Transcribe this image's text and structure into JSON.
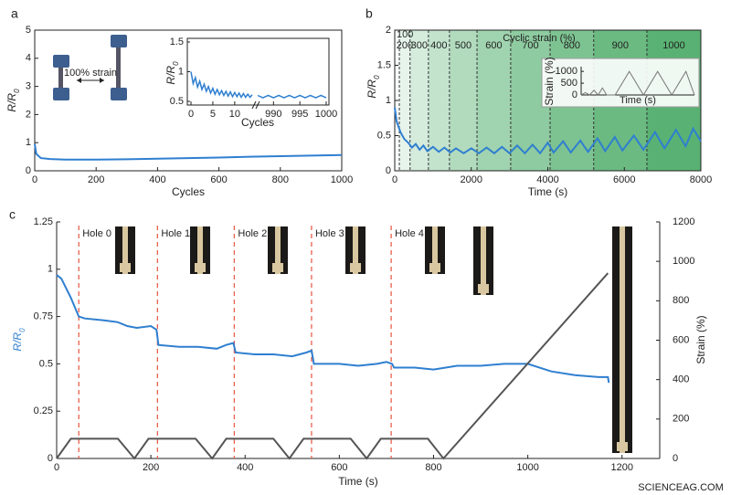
{
  "chart_data": [
    {
      "type": "line",
      "panel": "a",
      "xlabel": "Cycles",
      "ylabel": [
        "R/R",
        "0"
      ],
      "annotation": "100% strain",
      "xlim": [
        0,
        1000
      ],
      "xticks": [
        0,
        200,
        400,
        600,
        800,
        1000
      ],
      "ylim": [
        0,
        5
      ],
      "yticks": [
        0,
        1,
        2,
        3,
        4,
        5
      ],
      "series": [
        {
          "color": "#2f7fd0",
          "x": [
            0,
            5,
            20,
            50,
            100,
            200,
            300,
            400,
            500,
            600,
            700,
            800,
            900,
            1000
          ],
          "values": [
            0.95,
            0.6,
            0.45,
            0.42,
            0.4,
            0.4,
            0.41,
            0.43,
            0.45,
            0.47,
            0.5,
            0.52,
            0.54,
            0.56
          ]
        }
      ]
    },
    {
      "type": "line",
      "xlabel": "Cycles",
      "ylabel": [
        "R/R",
        "0"
      ],
      "ylim": [
        0.5,
        1.5
      ],
      "yticks": [
        0.5,
        1,
        1.5
      ],
      "segments": [
        {
          "xlim": [
            0,
            14
          ],
          "xticks": [
            0,
            5,
            10
          ]
        },
        {
          "xlim": [
            987,
            1000
          ],
          "xticks": [
            990,
            995,
            1000
          ]
        }
      ],
      "series": [
        {
          "color": "#2f7fd0",
          "x": [
            0,
            0.5,
            1,
            1.5,
            2,
            2.5,
            3,
            3.5,
            4,
            4.5,
            5,
            5.5,
            6,
            6.5,
            7,
            7.5,
            8,
            8.5,
            9,
            9.5,
            10,
            10.5,
            11,
            11.5,
            12,
            12.5,
            13,
            13.5,
            14
          ],
          "values": [
            1.0,
            0.8,
            0.9,
            0.74,
            0.84,
            0.7,
            0.79,
            0.67,
            0.75,
            0.64,
            0.72,
            0.62,
            0.7,
            0.61,
            0.68,
            0.6,
            0.67,
            0.59,
            0.66,
            0.58,
            0.65,
            0.58,
            0.64,
            0.57,
            0.63,
            0.57,
            0.62,
            0.57,
            0.61
          ]
        },
        {
          "color": "#2f7fd0",
          "x": [
            987,
            988,
            989,
            990,
            991,
            992,
            993,
            994,
            995,
            996,
            997,
            998,
            999,
            1000
          ],
          "values": [
            0.6,
            0.56,
            0.6,
            0.56,
            0.6,
            0.56,
            0.6,
            0.56,
            0.6,
            0.56,
            0.6,
            0.56,
            0.6,
            0.56
          ]
        }
      ]
    },
    {
      "type": "line",
      "panel": "b",
      "xlabel": "Time (s)",
      "ylabel": [
        "R/R",
        "0"
      ],
      "bands_title": "Cyclic strain (%)",
      "xlim": [
        0,
        8000
      ],
      "xticks": [
        0,
        2000,
        4000,
        6000,
        8000
      ],
      "ylim": [
        0,
        2
      ],
      "yticks": [
        0,
        0.5,
        1,
        1.5,
        2
      ],
      "bands": [
        {
          "label": "100",
          "start": 0,
          "end": 120
        },
        {
          "label": "200",
          "start": 120,
          "end": 400
        },
        {
          "label": "300",
          "start": 400,
          "end": 880
        },
        {
          "label": "400",
          "start": 880,
          "end": 1430
        },
        {
          "label": "500",
          "start": 1430,
          "end": 2150
        },
        {
          "label": "600",
          "start": 2150,
          "end": 3030
        },
        {
          "label": "700",
          "start": 3030,
          "end": 4060
        },
        {
          "label": "800",
          "start": 4060,
          "end": 5200
        },
        {
          "label": "900",
          "start": 5200,
          "end": 6590
        },
        {
          "label": "1000",
          "start": 6590,
          "end": 8000
        }
      ],
      "series": [
        {
          "color": "#2f7fd0",
          "x": [
            0,
            50,
            150,
            250,
            350,
            450,
            550,
            650,
            750,
            850,
            1000,
            1150,
            1300,
            1450,
            1600,
            1800,
            2000,
            2200,
            2400,
            2600,
            2800,
            3000,
            3200,
            3400,
            3600,
            3800,
            4000,
            4150,
            4400,
            4600,
            4850,
            5050,
            5300,
            5500,
            5750,
            5950,
            6250,
            6500,
            6800,
            7050,
            7350,
            7600,
            7800,
            8000
          ],
          "values": [
            0.9,
            0.7,
            0.55,
            0.45,
            0.4,
            0.33,
            0.38,
            0.3,
            0.36,
            0.28,
            0.34,
            0.27,
            0.33,
            0.26,
            0.32,
            0.25,
            0.32,
            0.25,
            0.33,
            0.25,
            0.34,
            0.25,
            0.36,
            0.25,
            0.37,
            0.25,
            0.4,
            0.26,
            0.42,
            0.26,
            0.43,
            0.27,
            0.46,
            0.28,
            0.48,
            0.29,
            0.5,
            0.3,
            0.55,
            0.32,
            0.58,
            0.35,
            0.6,
            0.42
          ]
        }
      ]
    },
    {
      "type": "line",
      "xlabel": "Time (s)",
      "ylabel": "Strain (%)",
      "xlim": [
        0,
        8000
      ],
      "ylim": [
        0,
        1200
      ],
      "yticks": [
        0,
        500,
        1000
      ],
      "series": [
        {
          "color": "#777777",
          "x": [
            0,
            300,
            600,
            900,
            1200,
            1500,
            1800,
            2400,
            3400,
            4400,
            5400,
            6400,
            7400,
            8000
          ],
          "values": [
            0,
            100,
            0,
            200,
            0,
            300,
            0,
            0,
            1000,
            0,
            1000,
            0,
            1000,
            0
          ]
        }
      ]
    },
    {
      "type": "line",
      "panel": "c",
      "xlabel": "Time (s)",
      "ylabel": [
        "R/R",
        "0"
      ],
      "y2label": "Strain (%)",
      "watermark": "SCIENCEAG.COM",
      "xlim": [
        0,
        1280
      ],
      "xticks": [
        0,
        200,
        400,
        600,
        800,
        1000,
        1200
      ],
      "ylim": [
        0,
        1.25
      ],
      "yticks": [
        0,
        0.25,
        0.5,
        0.75,
        1,
        1.25
      ],
      "y2lim": [
        0,
        1200
      ],
      "y2ticks": [
        0,
        200,
        400,
        600,
        800,
        1000,
        1200
      ],
      "holes": [
        {
          "label": "Hole 0",
          "x": 47
        },
        {
          "label": "Hole 1",
          "x": 214
        },
        {
          "label": "Hole 2",
          "x": 377
        },
        {
          "label": "Hole 3",
          "x": 541
        },
        {
          "label": "Hole 4",
          "x": 710
        }
      ],
      "series": [
        {
          "color": "#2f7fd0",
          "x": [
            0,
            10,
            30,
            47,
            60,
            100,
            130,
            150,
            170,
            200,
            212,
            216,
            260,
            300,
            340,
            360,
            375,
            380,
            420,
            460,
            500,
            530,
            541,
            546,
            600,
            640,
            680,
            700,
            712,
            716,
            760,
            800,
            850,
            900,
            950,
            1000,
            1050,
            1100,
            1150,
            1170,
            1172
          ],
          "values": [
            0.97,
            0.95,
            0.85,
            0.75,
            0.74,
            0.73,
            0.72,
            0.7,
            0.69,
            0.7,
            0.68,
            0.6,
            0.59,
            0.59,
            0.58,
            0.6,
            0.61,
            0.56,
            0.55,
            0.55,
            0.54,
            0.56,
            0.57,
            0.5,
            0.5,
            0.49,
            0.5,
            0.51,
            0.5,
            0.48,
            0.48,
            0.47,
            0.49,
            0.49,
            0.5,
            0.5,
            0.46,
            0.44,
            0.43,
            0.43,
            0.4
          ]
        },
        {
          "color": "#555555",
          "axis": "y2",
          "x": [
            0,
            30,
            130,
            165,
            195,
            295,
            330,
            360,
            460,
            494,
            524,
            624,
            658,
            688,
            788,
            821,
            1170
          ],
          "values": [
            0,
            100,
            100,
            0,
            100,
            100,
            0,
            100,
            100,
            0,
            100,
            100,
            0,
            100,
            100,
            0,
            940
          ]
        }
      ]
    }
  ]
}
